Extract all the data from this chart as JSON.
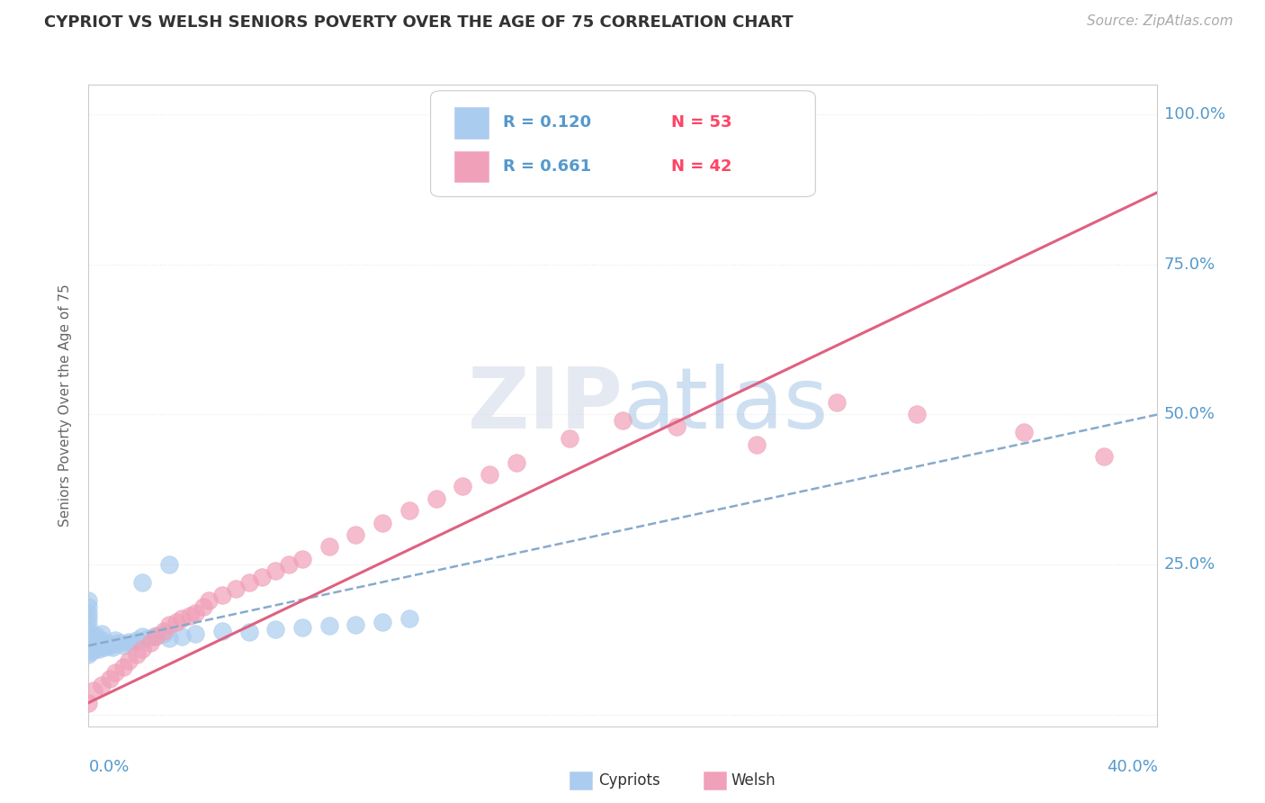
{
  "title": "CYPRIOT VS WELSH SENIORS POVERTY OVER THE AGE OF 75 CORRELATION CHART",
  "source": "Source: ZipAtlas.com",
  "ylabel": "Seniors Poverty Over the Age of 75",
  "xlim": [
    0.0,
    0.4
  ],
  "ylim": [
    -0.02,
    1.05
  ],
  "watermark": "ZIPatlas",
  "legend_cypriot_r": "R = 0.120",
  "legend_cypriot_n": "N = 53",
  "legend_welsh_r": "R = 0.661",
  "legend_welsh_n": "N = 42",
  "cypriot_color": "#aaccee",
  "welsh_color": "#f0a0b8",
  "trendline_cypriot_color": "#88aacc",
  "trendline_welsh_color": "#e06080",
  "title_color": "#333333",
  "source_color": "#aaaaaa",
  "axis_color": "#5599cc",
  "grid_color": "#e8e8e8",
  "background_color": "#ffffff",
  "watermark_color": "#c8ddf0",
  "legend_r_color": "#5599cc",
  "legend_n_color": "#ff4466",
  "cypriot_scatter_x": [
    0.0,
    0.0,
    0.0,
    0.0,
    0.0,
    0.0,
    0.0,
    0.0,
    0.0,
    0.0,
    0.001,
    0.001,
    0.001,
    0.001,
    0.002,
    0.002,
    0.002,
    0.003,
    0.003,
    0.003,
    0.004,
    0.004,
    0.005,
    0.005,
    0.005,
    0.006,
    0.007,
    0.008,
    0.009,
    0.01,
    0.01,
    0.012,
    0.013,
    0.015,
    0.016,
    0.018,
    0.02,
    0.022,
    0.025,
    0.028,
    0.03,
    0.035,
    0.04,
    0.05,
    0.06,
    0.07,
    0.08,
    0.09,
    0.1,
    0.11,
    0.12,
    0.03,
    0.02
  ],
  "cypriot_scatter_y": [
    0.1,
    0.11,
    0.12,
    0.13,
    0.14,
    0.15,
    0.16,
    0.17,
    0.18,
    0.19,
    0.105,
    0.115,
    0.125,
    0.135,
    0.108,
    0.118,
    0.128,
    0.112,
    0.122,
    0.132,
    0.11,
    0.12,
    0.115,
    0.125,
    0.135,
    0.112,
    0.118,
    0.115,
    0.112,
    0.118,
    0.125,
    0.12,
    0.115,
    0.122,
    0.118,
    0.125,
    0.13,
    0.128,
    0.132,
    0.135,
    0.128,
    0.13,
    0.135,
    0.14,
    0.138,
    0.142,
    0.145,
    0.148,
    0.15,
    0.155,
    0.16,
    0.25,
    0.22
  ],
  "welsh_scatter_x": [
    0.0,
    0.002,
    0.005,
    0.008,
    0.01,
    0.013,
    0.015,
    0.018,
    0.02,
    0.023,
    0.025,
    0.028,
    0.03,
    0.033,
    0.035,
    0.038,
    0.04,
    0.043,
    0.045,
    0.05,
    0.055,
    0.06,
    0.065,
    0.07,
    0.075,
    0.08,
    0.09,
    0.1,
    0.11,
    0.12,
    0.13,
    0.14,
    0.15,
    0.16,
    0.18,
    0.2,
    0.22,
    0.25,
    0.28,
    0.31,
    0.35,
    0.38
  ],
  "welsh_scatter_y": [
    0.02,
    0.04,
    0.05,
    0.06,
    0.07,
    0.08,
    0.09,
    0.1,
    0.11,
    0.12,
    0.13,
    0.14,
    0.15,
    0.155,
    0.16,
    0.165,
    0.17,
    0.18,
    0.19,
    0.2,
    0.21,
    0.22,
    0.23,
    0.24,
    0.25,
    0.26,
    0.28,
    0.3,
    0.32,
    0.34,
    0.36,
    0.38,
    0.4,
    0.42,
    0.46,
    0.49,
    0.48,
    0.45,
    0.52,
    0.5,
    0.47,
    0.43
  ],
  "cypriot_trend_x0": 0.0,
  "cypriot_trend_y0": 0.115,
  "cypriot_trend_x1": 0.4,
  "cypriot_trend_y1": 0.5,
  "welsh_trend_x0": 0.0,
  "welsh_trend_y0": 0.02,
  "welsh_trend_x1": 0.4,
  "welsh_trend_y1": 0.87
}
